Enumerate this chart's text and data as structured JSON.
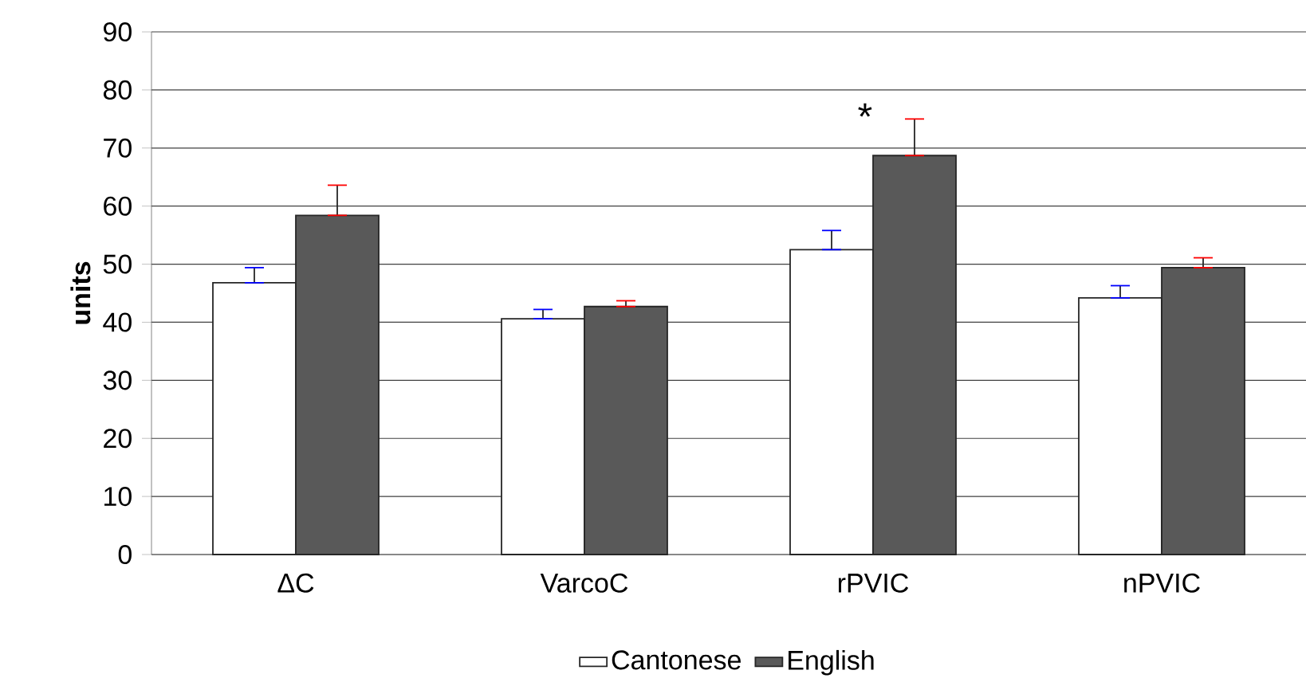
{
  "chart_data": {
    "type": "bar",
    "ylabel": "units",
    "categories": [
      "ΔC",
      "VarcoC",
      "rPVIC",
      "nPVIC"
    ],
    "series": [
      {
        "name": "Cantonese",
        "color": "#ffffff",
        "values": [
          46.8,
          40.6,
          52.5,
          44.2
        ],
        "errors": [
          [
            46.8,
            49.4
          ],
          [
            40.6,
            42.2
          ],
          [
            52.5,
            55.8
          ],
          [
            44.2,
            46.3
          ]
        ]
      },
      {
        "name": "English",
        "color": "#595959",
        "values": [
          58.4,
          42.7,
          68.7,
          49.4
        ],
        "errors": [
          [
            58.4,
            63.6
          ],
          [
            42.7,
            43.7
          ],
          [
            68.7,
            75.0
          ],
          [
            49.4,
            51.1
          ]
        ]
      }
    ],
    "ylim": [
      0,
      90
    ],
    "yticks": [
      0,
      10,
      20,
      30,
      40,
      50,
      60,
      70,
      80,
      90
    ],
    "grid": "y",
    "legend": "bottom",
    "annotations": [
      "*"
    ]
  }
}
